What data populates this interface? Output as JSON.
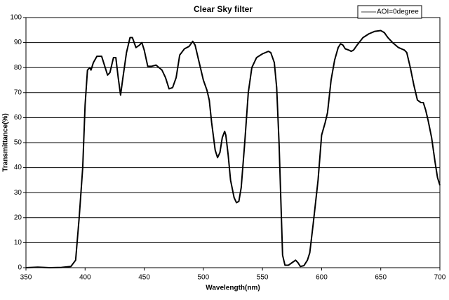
{
  "chart_data": {
    "type": "line",
    "title": "Clear Sky filter",
    "x_label": "Wavelength(nm)",
    "y_label": "Transmittance(%)",
    "x": [
      350,
      360,
      370,
      380,
      388,
      392,
      395,
      398,
      400,
      402,
      404,
      405,
      407,
      410,
      414,
      417,
      419,
      421,
      424,
      426,
      428,
      430,
      432,
      435,
      438,
      440,
      443,
      446,
      448,
      450,
      453,
      456,
      460,
      465,
      468,
      471,
      474,
      477,
      480,
      484,
      488,
      491,
      493,
      496,
      500,
      503,
      505,
      507,
      510,
      512,
      514,
      516,
      518,
      519,
      521,
      523,
      526,
      528,
      530,
      532,
      535,
      538,
      541,
      545,
      550,
      555,
      557,
      560,
      562,
      564,
      566,
      567,
      569,
      572,
      575,
      578,
      580,
      582,
      585,
      588,
      590,
      593,
      597,
      600,
      603,
      605,
      608,
      611,
      614,
      616,
      618,
      620,
      623,
      625,
      627,
      630,
      635,
      640,
      645,
      650,
      653,
      656,
      660,
      665,
      670,
      672,
      675,
      678,
      681,
      684,
      686,
      688,
      690,
      693,
      696,
      698,
      700
    ],
    "series": [
      {
        "name": "AOI=0degree",
        "color": "#000000",
        "values": [
          0,
          0.2,
          0,
          0.1,
          0.5,
          3,
          20,
          40,
          65,
          79,
          80,
          79,
          82,
          84.5,
          84.5,
          80,
          77,
          78,
          84,
          84,
          76,
          69,
          76,
          86,
          92,
          92,
          88,
          89,
          90,
          87,
          80.5,
          80.5,
          81,
          79,
          76,
          71.5,
          72,
          76,
          85,
          87.5,
          88.5,
          90.5,
          89,
          83,
          75,
          71,
          67,
          58,
          47,
          44,
          46,
          52,
          54.5,
          53,
          45,
          35,
          28,
          26,
          26.5,
          32,
          50,
          70,
          80,
          84,
          85.5,
          86.5,
          86,
          82,
          72,
          50,
          20,
          5,
          1,
          1,
          2,
          3,
          2,
          0.5,
          0.8,
          3,
          6,
          18,
          35,
          53,
          58,
          62,
          75,
          83,
          88,
          89.5,
          89,
          87.5,
          87,
          86.5,
          87,
          89,
          92,
          93.5,
          94.5,
          94.8,
          94,
          92,
          90,
          88,
          87,
          86,
          80,
          73,
          67,
          66,
          66,
          63,
          59,
          52,
          42,
          36,
          33
        ]
      }
    ],
    "xlim": [
      350,
      700
    ],
    "xticks": [
      350,
      400,
      450,
      500,
      550,
      600,
      650,
      700
    ],
    "ylim": [
      0,
      100
    ],
    "yticks": [
      0,
      10,
      20,
      30,
      40,
      50,
      60,
      70,
      80,
      90,
      100
    ],
    "grid": true,
    "legend": "top-right"
  }
}
